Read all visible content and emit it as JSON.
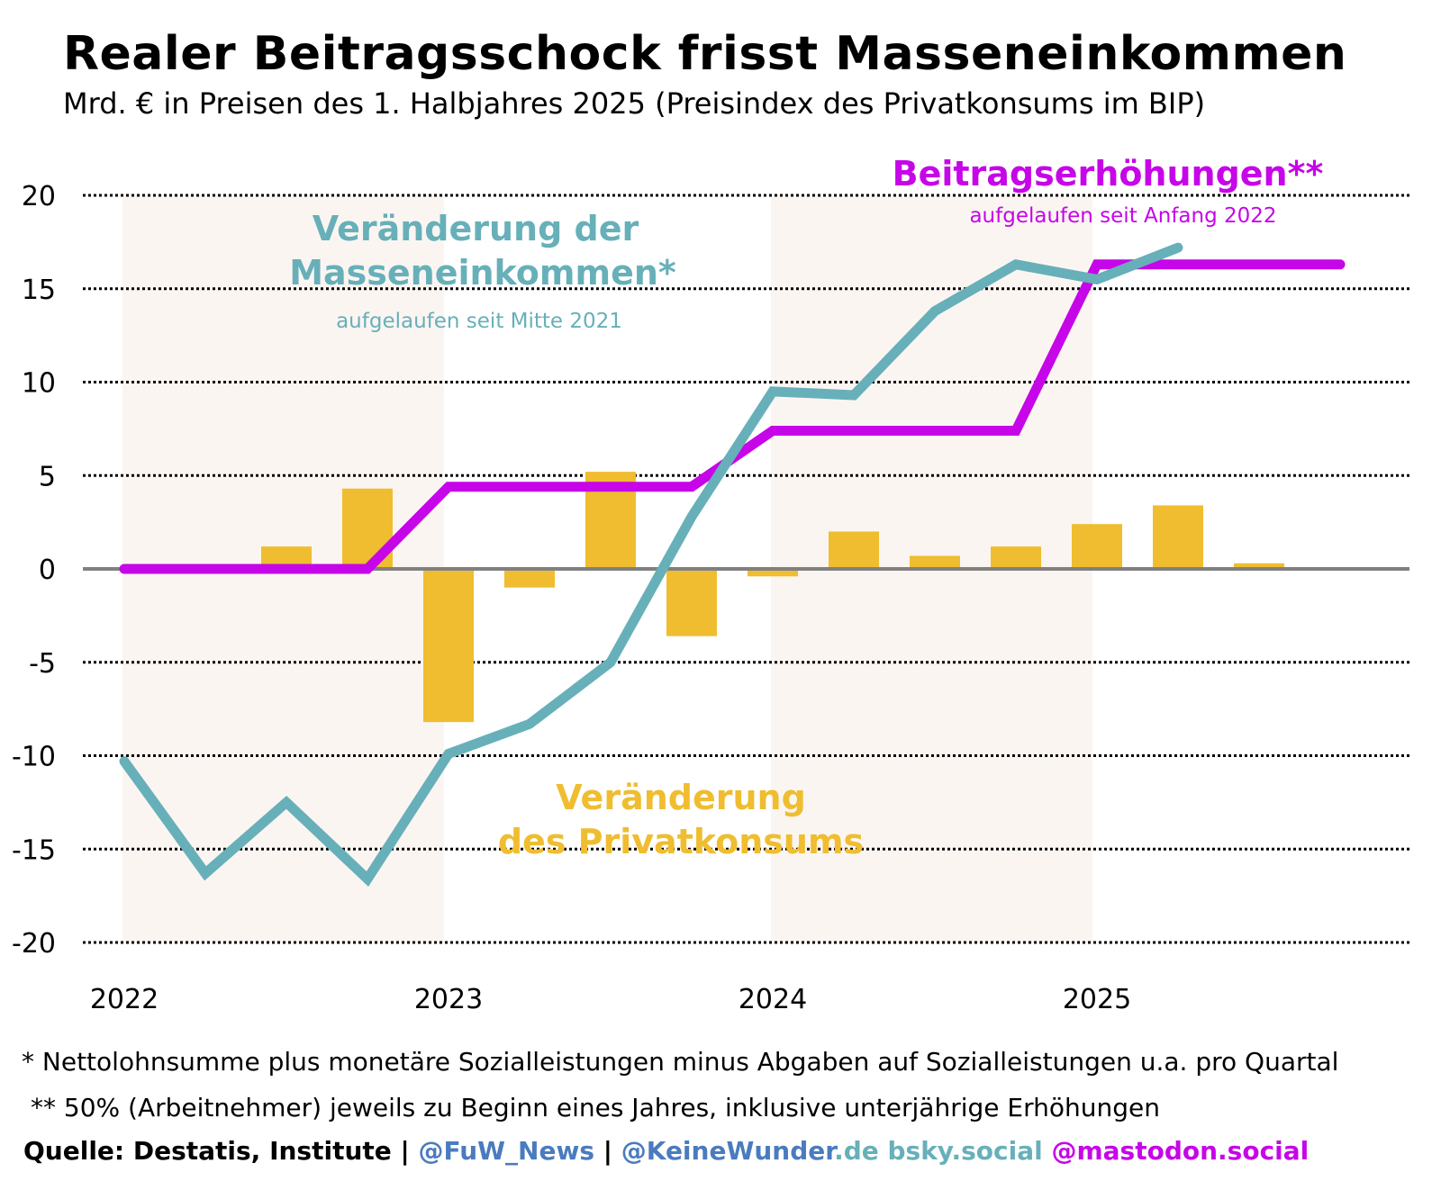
{
  "header": {
    "title": "Realer Beitragsschock frisst Masseneinkommen",
    "subtitle": "Mrd. € in Preisen des 1. Halbjahres 2025 (Preisindex des Privatkonsums im BIP)"
  },
  "colors": {
    "bars": "#efbd2f",
    "income_line": "#67b0b9",
    "contribution_line": "#c605e8",
    "zero_line": "#808080",
    "year_band": "#fbf5f2",
    "source_blue": "#4a7bbf"
  },
  "chart_data": {
    "type": "bar+line",
    "title": "Realer Beitragsschock frisst Masseneinkommen",
    "subtitle": "Mrd. € in Preisen des 1. Halbjahres 2025 (Preisindex des Privatkonsums im BIP)",
    "xlabel": "",
    "ylabel": "",
    "ylim": [
      -20,
      20
    ],
    "yticks": [
      20,
      15,
      10,
      5,
      0,
      -5,
      -10,
      -15,
      -20
    ],
    "ytick_labels": [
      "20",
      "15",
      "10",
      "5",
      "0",
      "-5",
      "-10",
      "-15",
      "-20"
    ],
    "xticks": [
      "2022",
      "2023",
      "2024",
      "2025"
    ],
    "grid": "horizontal dotted",
    "shaded_years": [
      "2022",
      "2024"
    ],
    "x": [
      "2022Q1",
      "2022Q2",
      "2022Q3",
      "2022Q4",
      "2023Q1",
      "2023Q2",
      "2023Q3",
      "2023Q4",
      "2024Q1",
      "2024Q2",
      "2024Q3",
      "2024Q4",
      "2025Q1",
      "2025Q2",
      "2025Q3",
      "2025Q4"
    ],
    "series": [
      {
        "name": "Veränderung des Privatkonsums",
        "type": "bar",
        "values": [
          0.0,
          1.2,
          4.3,
          -8.2,
          -1.0,
          5.2,
          -3.6,
          -0.4,
          2.0,
          0.7,
          1.2,
          2.4,
          3.4,
          0.3,
          null,
          null
        ]
      },
      {
        "name": "Veränderung der Masseneinkommen*",
        "note": "aufgelaufen seit Mitte 2021",
        "type": "line",
        "values": [
          -10.3,
          -16.3,
          -12.5,
          -16.6,
          -9.9,
          -8.3,
          -5.0,
          2.8,
          9.5,
          9.3,
          13.8,
          16.3,
          15.5,
          17.2,
          null,
          null
        ]
      },
      {
        "name": "Beitragserhöhungen**",
        "note": "aufgelaufen seit Anfang 2022",
        "type": "line",
        "values": [
          0.0,
          0.0,
          0.0,
          0.0,
          4.4,
          4.4,
          4.4,
          4.4,
          7.4,
          7.4,
          7.4,
          7.4,
          16.3,
          16.3,
          16.3,
          16.3
        ]
      }
    ],
    "annotations": {
      "income_label_line1": "Veränderung der",
      "income_label_line2": "Masseneinkommen*",
      "income_sublabel": "aufgelaufen seit Mitte 2021",
      "consumption_label_line1": "Veränderung",
      "consumption_label_line2": "des Privatkonsums",
      "contribution_label": "Beitragserhöhungen**",
      "contribution_sublabel": "aufgelaufen seit Anfang 2022"
    }
  },
  "footnotes": {
    "note1": "* Nettolohnsumme plus monetäre Sozialleistungen minus Abgaben auf Sozialleistungen u.a. pro Quartal",
    "note2": "** 50% (Arbeitnehmer) jeweils zu Beginn eines Jahres, inklusive unterjährige Erhöhungen"
  },
  "source": {
    "prefix": "Quelle: Destatis, Institute | ",
    "handle1": "@FuW_News",
    "sep": " | ",
    "handle2_a": "@KeineWunder",
    "handle2_b": ".de bsky.social ",
    "handle3": "@mastodon.social"
  }
}
